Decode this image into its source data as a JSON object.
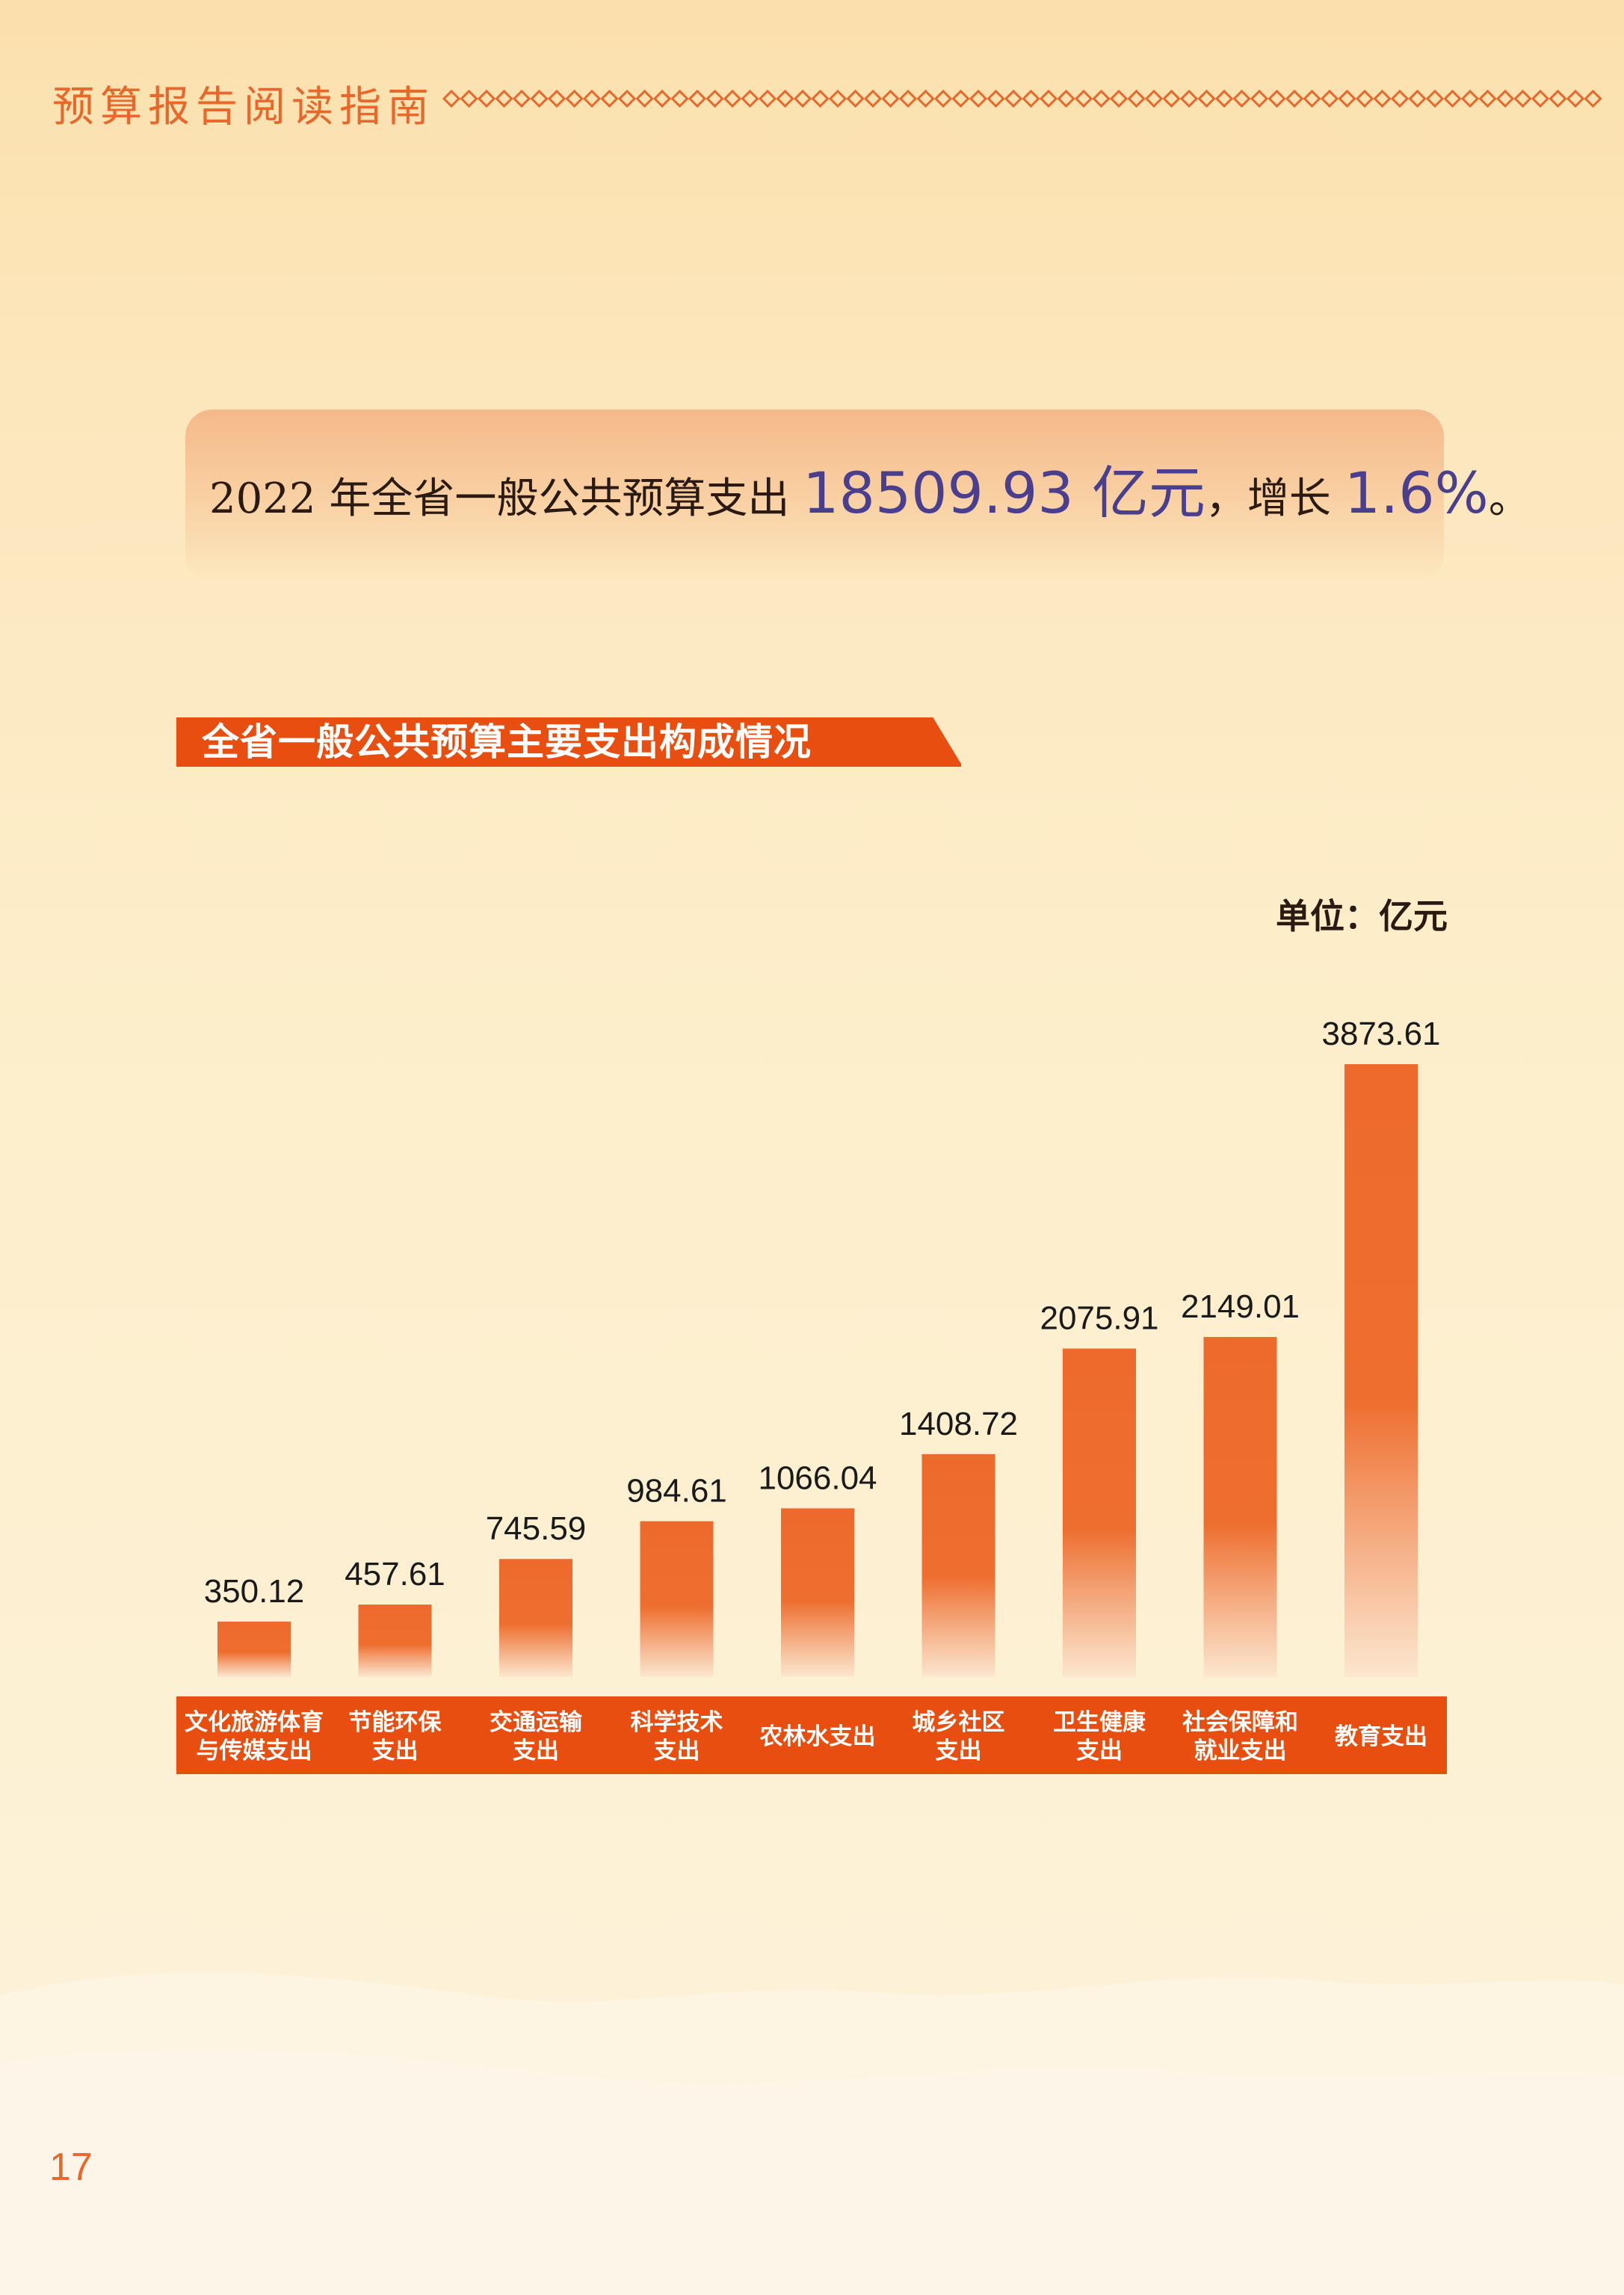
{
  "header": {
    "title": "预算报告阅读指南"
  },
  "summary": {
    "prefix": "2022 年全省一般公共预算支出 ",
    "total": "18509.93 亿元",
    "middle": "，增长 ",
    "growth": "1.6%",
    "suffix": "。"
  },
  "section": {
    "title": "全省一般公共预算主要支出构成情况"
  },
  "unit": "单位：亿元",
  "page_number": "17",
  "colors": {
    "bar": "#ed6a2c",
    "accent": "#e8682c",
    "axis_band": "#e84e0f",
    "highlight": "#4a3f8f"
  },
  "chart_data": {
    "type": "bar",
    "title": "全省一般公共预算主要支出构成情况",
    "unit": "单位：亿元",
    "categories": [
      [
        "文化旅游体育",
        "与传媒支出"
      ],
      [
        "节能环保",
        "支出"
      ],
      [
        "交通运输",
        "支出"
      ],
      [
        "科学技术",
        "支出"
      ],
      [
        "农林水支出"
      ],
      [
        "城乡社区",
        "支出"
      ],
      [
        "卫生健康",
        "支出"
      ],
      [
        "社会保障和",
        "就业支出"
      ],
      [
        "教育支出"
      ]
    ],
    "values": [
      350.12,
      457.61,
      745.59,
      984.61,
      1066.04,
      1408.72,
      2075.91,
      2149.01,
      3873.61
    ],
    "value_labels": [
      "350.12",
      "457.61",
      "745.59",
      "984.61",
      "1066.04",
      "1408.72",
      "2075.91",
      "2149.01",
      "3873.61"
    ],
    "ylim": [
      0,
      3873.61
    ],
    "grid": false,
    "legend": "none"
  }
}
